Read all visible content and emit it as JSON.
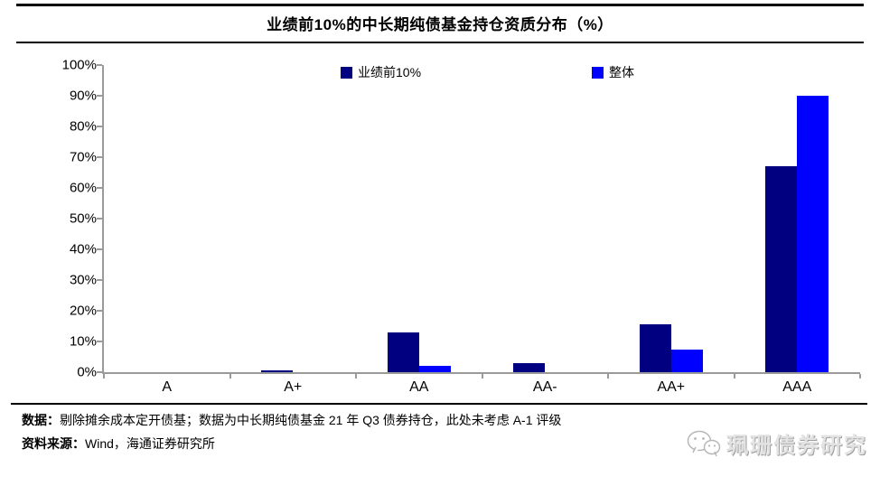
{
  "header": {
    "title": "业绩前10%的中长期纯债基金持仓资质分布（%）"
  },
  "chart_data": {
    "type": "bar",
    "title": "业绩前10%的中长期纯债基金持仓资质分布（%）",
    "categories": [
      "A",
      "A+",
      "AA",
      "AA-",
      "AA+",
      "AAA"
    ],
    "series": [
      {
        "name": "业绩前10%",
        "color": "#000080",
        "values": [
          0,
          0.6,
          13,
          3,
          15.5,
          67
        ]
      },
      {
        "name": "整体",
        "color": "#0000FF",
        "values": [
          0,
          0,
          2,
          0,
          7.5,
          90
        ]
      }
    ],
    "ylabel": "",
    "xlabel": "",
    "ylim": [
      0,
      100
    ],
    "ytick_labels": [
      "0%",
      "10%",
      "20%",
      "30%",
      "40%",
      "50%",
      "60%",
      "70%",
      "80%",
      "90%",
      "100%"
    ],
    "grid": false,
    "legend_position": "top-inside",
    "axis_color": "#9a9a9a"
  },
  "legend": {
    "items": [
      {
        "label": "业绩前10%",
        "color": "#000080"
      },
      {
        "label": "整体",
        "color": "#0000FF"
      }
    ]
  },
  "footer": {
    "note_label": "数据：",
    "note_text": "剔除摊余成本定开债基；数据为中长期纯债基金 21 年 Q3 债券持仓，此处未考虑 A-1 评级",
    "source_label": "资料来源：",
    "source_text": "Wind，海通证券研究所"
  },
  "watermark": {
    "icon": "wechat-icon",
    "text": "珮珊债券研究"
  }
}
